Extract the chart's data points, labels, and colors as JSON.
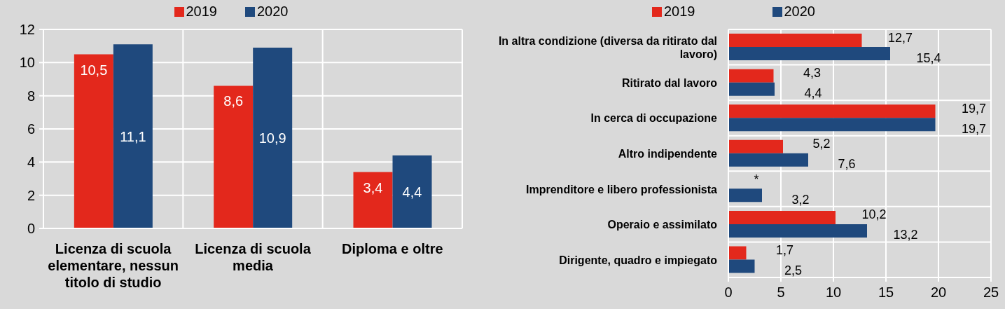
{
  "chart_data": [
    {
      "type": "bar",
      "categories": [
        "Licenza di scuola elementare, nessun titolo di studio",
        "Licenza di scuola media",
        "Diploma e oltre"
      ],
      "series": [
        {
          "name": "2019",
          "color": "#e3281c",
          "values": [
            10.5,
            8.6,
            3.4
          ],
          "value_labels": [
            "10,5",
            "8,6",
            "3,4"
          ]
        },
        {
          "name": "2020",
          "color": "#1f497d",
          "values": [
            11.1,
            10.9,
            4.4
          ],
          "value_labels": [
            "11,1",
            "10,9",
            "4,4"
          ]
        }
      ],
      "ylim": [
        0,
        12
      ],
      "yticks": [
        0,
        2,
        4,
        6,
        8,
        10,
        12
      ],
      "grid": true,
      "legend": "top"
    },
    {
      "type": "bar",
      "orientation": "horizontal",
      "categories": [
        "In altra condizione (diversa da ritirato dal lavoro)",
        "Ritirato dal lavoro",
        "In cerca di occupazione",
        "Altro indipendente",
        "Imprenditore e libero professionista",
        "Operaio e assimilato",
        "Dirigente, quadro e impiegato"
      ],
      "series": [
        {
          "name": "2019",
          "color": "#e3281c",
          "values": [
            12.7,
            4.3,
            19.7,
            5.2,
            null,
            10.2,
            1.7
          ],
          "value_labels": [
            "12,7",
            "4,3",
            "19,7",
            "5,2",
            "*",
            "10,2",
            "1,7"
          ]
        },
        {
          "name": "2020",
          "color": "#1f497d",
          "values": [
            15.4,
            4.4,
            19.7,
            7.6,
            3.2,
            13.2,
            2.5
          ],
          "value_labels": [
            "15,4",
            "4,4",
            "19,7",
            "7,6",
            "3,2",
            "13,2",
            "2,5"
          ]
        }
      ],
      "xlim": [
        0,
        25
      ],
      "xticks": [
        0,
        5,
        10,
        15,
        20,
        25
      ],
      "grid": true,
      "legend": "top"
    }
  ]
}
